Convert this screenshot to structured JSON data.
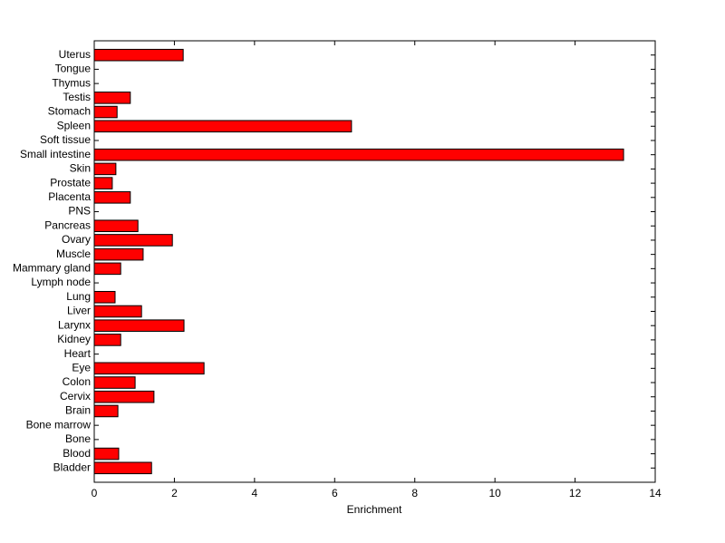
{
  "chart_data": {
    "type": "barh",
    "xlabel": "Enrichment",
    "categories": [
      "Bladder",
      "Blood",
      "Bone",
      "Bone marrow",
      "Brain",
      "Cervix",
      "Colon",
      "Eye",
      "Heart",
      "Kidney",
      "Larynx",
      "Liver",
      "Lung",
      "Lymph node",
      "Mammary gland",
      "Muscle",
      "Ovary",
      "Pancreas",
      "PNS",
      "Placenta",
      "Prostate",
      "Skin",
      "Small intestine",
      "Soft tissue",
      "Spleen",
      "Stomach",
      "Testis",
      "Thymus",
      "Tongue",
      "Uterus"
    ],
    "values": [
      1.43,
      0.61,
      0,
      0,
      0.59,
      1.49,
      1.02,
      2.74,
      0,
      0.66,
      2.24,
      1.18,
      0.52,
      0,
      0.66,
      1.22,
      1.95,
      1.09,
      0,
      0.9,
      0.45,
      0.54,
      13.21,
      0,
      6.42,
      0.57,
      0.9,
      0,
      0,
      2.22
    ],
    "color": "#ff0000",
    "xlim": [
      0,
      14
    ],
    "xticks": [
      0,
      2,
      4,
      6,
      8,
      10,
      12,
      14
    ]
  }
}
